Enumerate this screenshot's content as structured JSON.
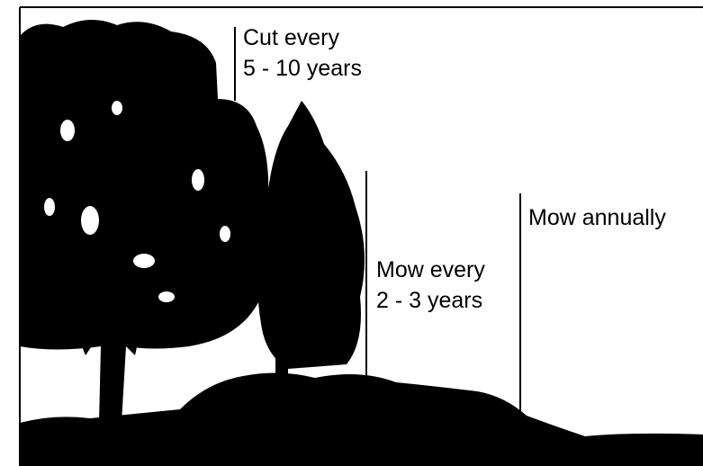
{
  "labels": [
    {
      "lines": [
        "Cut every",
        "5 - 10 years"
      ]
    },
    {
      "lines": [
        "Mow every",
        "2 - 3 years"
      ]
    },
    {
      "lines": [
        "Mow annually"
      ]
    }
  ]
}
